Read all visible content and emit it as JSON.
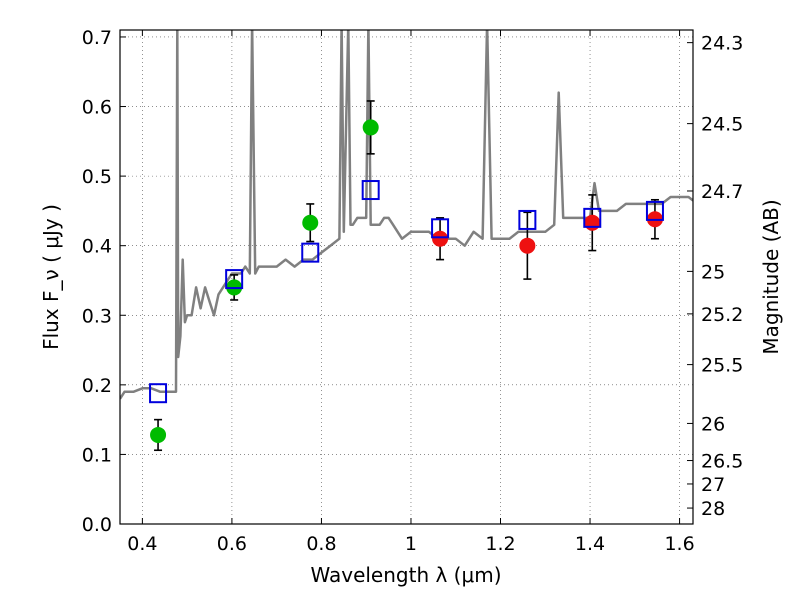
{
  "chart_data": {
    "type": "scatter",
    "xlabel": "Wavelength  λ (μm)",
    "ylabel": "Flux  F_ν  ( μJy )",
    "y2label": "Magnitude (AB)",
    "xlim": [
      0.35,
      1.63
    ],
    "ylim": [
      0.0,
      0.71
    ],
    "grid": true,
    "x_ticks": [
      {
        "value": 0.4,
        "label": "0.4"
      },
      {
        "value": 0.6,
        "label": "0.6"
      },
      {
        "value": 0.8,
        "label": "0.8"
      },
      {
        "value": 1.0,
        "label": "1"
      },
      {
        "value": 1.2,
        "label": "1.2"
      },
      {
        "value": 1.4,
        "label": "1.4"
      },
      {
        "value": 1.6,
        "label": "1.6"
      }
    ],
    "y_ticks": [
      {
        "value": 0.0,
        "label": "0.0"
      },
      {
        "value": 0.1,
        "label": "0.1"
      },
      {
        "value": 0.2,
        "label": "0.2"
      },
      {
        "value": 0.3,
        "label": "0.3"
      },
      {
        "value": 0.4,
        "label": "0.4"
      },
      {
        "value": 0.5,
        "label": "0.5"
      },
      {
        "value": 0.6,
        "label": "0.6"
      },
      {
        "value": 0.7,
        "label": "0.7"
      }
    ],
    "right_ticks": [
      {
        "label": "24.3",
        "mag": 24.3
      },
      {
        "label": "24.5",
        "mag": 24.5
      },
      {
        "label": "24.7",
        "mag": 24.7
      },
      {
        "label": "25",
        "mag": 25.0
      },
      {
        "label": "25.2",
        "mag": 25.2
      },
      {
        "label": "25.5",
        "mag": 25.5
      },
      {
        "label": "26",
        "mag": 26.0
      },
      {
        "label": "26.5",
        "mag": 26.5
      },
      {
        "label": "27",
        "mag": 27.0
      },
      {
        "label": "28",
        "mag": 28.0
      }
    ],
    "series": [
      {
        "kind": "spectrum",
        "color": "#808080",
        "points": [
          [
            0.35,
            0.18
          ],
          [
            0.36,
            0.19
          ],
          [
            0.38,
            0.19
          ],
          [
            0.4,
            0.195
          ],
          [
            0.42,
            0.195
          ],
          [
            0.44,
            0.19
          ],
          [
            0.46,
            0.19
          ],
          [
            0.475,
            0.19
          ],
          [
            0.478,
            0.72
          ],
          [
            0.48,
            0.24
          ],
          [
            0.485,
            0.27
          ],
          [
            0.49,
            0.38
          ],
          [
            0.495,
            0.29
          ],
          [
            0.5,
            0.3
          ],
          [
            0.51,
            0.3
          ],
          [
            0.52,
            0.34
          ],
          [
            0.53,
            0.31
          ],
          [
            0.54,
            0.34
          ],
          [
            0.55,
            0.32
          ],
          [
            0.56,
            0.3
          ],
          [
            0.57,
            0.33
          ],
          [
            0.58,
            0.34
          ],
          [
            0.59,
            0.35
          ],
          [
            0.6,
            0.36
          ],
          [
            0.61,
            0.36
          ],
          [
            0.62,
            0.36
          ],
          [
            0.63,
            0.37
          ],
          [
            0.64,
            0.36
          ],
          [
            0.645,
            0.72
          ],
          [
            0.652,
            0.36
          ],
          [
            0.66,
            0.37
          ],
          [
            0.68,
            0.37
          ],
          [
            0.7,
            0.37
          ],
          [
            0.72,
            0.38
          ],
          [
            0.74,
            0.37
          ],
          [
            0.76,
            0.38
          ],
          [
            0.78,
            0.38
          ],
          [
            0.8,
            0.39
          ],
          [
            0.82,
            0.4
          ],
          [
            0.84,
            0.41
          ],
          [
            0.845,
            0.72
          ],
          [
            0.85,
            0.42
          ],
          [
            0.86,
            0.72
          ],
          [
            0.865,
            0.43
          ],
          [
            0.87,
            0.43
          ],
          [
            0.88,
            0.44
          ],
          [
            0.89,
            0.44
          ],
          [
            0.9,
            0.44
          ],
          [
            0.905,
            0.72
          ],
          [
            0.91,
            0.43
          ],
          [
            0.92,
            0.43
          ],
          [
            0.93,
            0.43
          ],
          [
            0.94,
            0.44
          ],
          [
            0.95,
            0.44
          ],
          [
            0.96,
            0.43
          ],
          [
            0.98,
            0.41
          ],
          [
            1.0,
            0.42
          ],
          [
            1.02,
            0.42
          ],
          [
            1.04,
            0.42
          ],
          [
            1.06,
            0.41
          ],
          [
            1.08,
            0.41
          ],
          [
            1.1,
            0.41
          ],
          [
            1.12,
            0.4
          ],
          [
            1.14,
            0.42
          ],
          [
            1.16,
            0.41
          ],
          [
            1.17,
            0.72
          ],
          [
            1.18,
            0.41
          ],
          [
            1.2,
            0.41
          ],
          [
            1.22,
            0.41
          ],
          [
            1.24,
            0.42
          ],
          [
            1.26,
            0.42
          ],
          [
            1.28,
            0.42
          ],
          [
            1.3,
            0.42
          ],
          [
            1.32,
            0.43
          ],
          [
            1.33,
            0.62
          ],
          [
            1.34,
            0.44
          ],
          [
            1.36,
            0.44
          ],
          [
            1.38,
            0.44
          ],
          [
            1.4,
            0.44
          ],
          [
            1.41,
            0.49
          ],
          [
            1.42,
            0.45
          ],
          [
            1.44,
            0.45
          ],
          [
            1.46,
            0.45
          ],
          [
            1.48,
            0.46
          ],
          [
            1.5,
            0.46
          ],
          [
            1.52,
            0.46
          ],
          [
            1.54,
            0.46
          ],
          [
            1.56,
            0.46
          ],
          [
            1.58,
            0.47
          ],
          [
            1.6,
            0.47
          ],
          [
            1.62,
            0.47
          ],
          [
            1.63,
            0.465
          ]
        ]
      },
      {
        "kind": "points",
        "marker": "circle",
        "color": "#00bb00",
        "points": [
          {
            "x": 0.435,
            "y": 0.128,
            "err": 0.022
          },
          {
            "x": 0.605,
            "y": 0.34,
            "err": 0.018
          },
          {
            "x": 0.775,
            "y": 0.433,
            "err": 0.027
          },
          {
            "x": 0.91,
            "y": 0.57,
            "err": 0.038
          }
        ]
      },
      {
        "kind": "points",
        "marker": "circle",
        "color": "#ee1111",
        "points": [
          {
            "x": 1.065,
            "y": 0.41,
            "err": 0.03
          },
          {
            "x": 1.26,
            "y": 0.4,
            "err": 0.048
          },
          {
            "x": 1.405,
            "y": 0.433,
            "err": 0.04
          },
          {
            "x": 1.545,
            "y": 0.438,
            "err": 0.028
          }
        ]
      },
      {
        "kind": "points",
        "marker": "open-square",
        "color": "#0000dd",
        "points": [
          {
            "x": 0.435,
            "y": 0.188
          },
          {
            "x": 0.605,
            "y": 0.352
          },
          {
            "x": 0.775,
            "y": 0.39
          },
          {
            "x": 0.91,
            "y": 0.48
          },
          {
            "x": 1.065,
            "y": 0.425
          },
          {
            "x": 1.26,
            "y": 0.437
          },
          {
            "x": 1.405,
            "y": 0.44
          },
          {
            "x": 1.545,
            "y": 0.45
          }
        ]
      }
    ]
  }
}
